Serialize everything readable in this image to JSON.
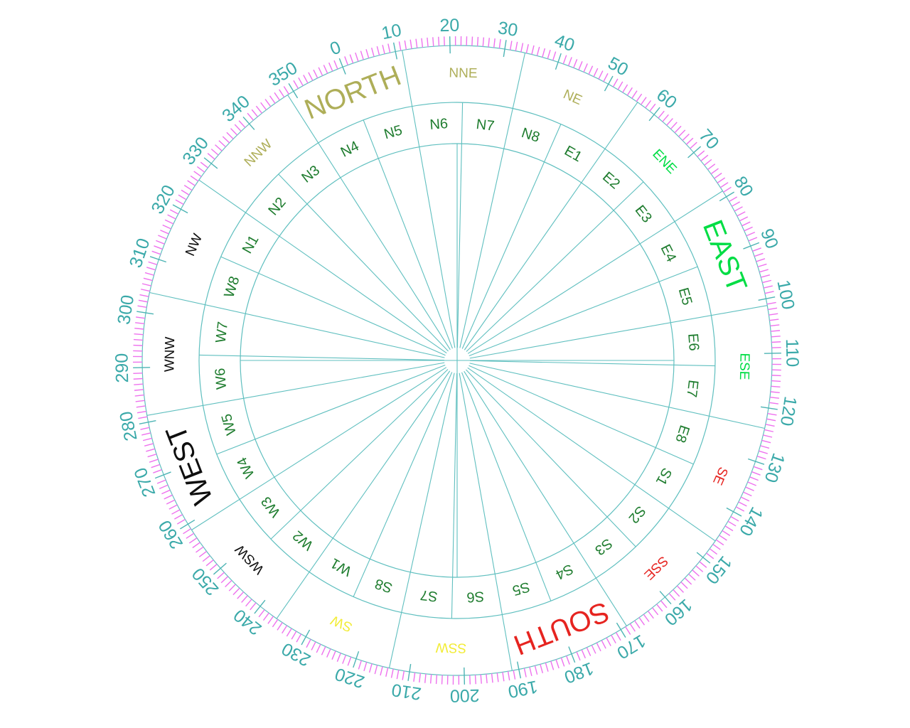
{
  "page": {
    "background": "#ffffff"
  },
  "chart_data": {
    "type": "polar-compass-dial",
    "title": "",
    "rotation_deg": -21.3,
    "tick_ring": {
      "minor_step_deg": 1,
      "major_step_deg": 10,
      "minor_tick_color": "#ee72ee",
      "major_tick_color": "#4db4b4"
    },
    "degree_labels": {
      "color": "#3aa9a9",
      "values": [
        0,
        10,
        20,
        30,
        40,
        50,
        60,
        70,
        80,
        90,
        100,
        110,
        120,
        130,
        140,
        150,
        160,
        170,
        180,
        190,
        200,
        210,
        220,
        230,
        240,
        250,
        260,
        270,
        280,
        290,
        300,
        310,
        320,
        330,
        340,
        350
      ]
    },
    "cardinal_ring": {
      "labels": [
        {
          "text": "NORTH",
          "heading": 0,
          "major": true,
          "color": "#aeae58"
        },
        {
          "text": "NNE",
          "heading": 22.5,
          "major": false,
          "color": "#aeae58"
        },
        {
          "text": "NE",
          "heading": 45,
          "major": false,
          "color": "#aeae58"
        },
        {
          "text": "ENE",
          "heading": 67.5,
          "major": false,
          "color": "#00dd44"
        },
        {
          "text": "EAST",
          "heading": 90,
          "major": true,
          "color": "#00dd44"
        },
        {
          "text": "ESE",
          "heading": 112.5,
          "major": false,
          "color": "#00dd44"
        },
        {
          "text": "SE",
          "heading": 135,
          "major": false,
          "color": "#e62420"
        },
        {
          "text": "SSE",
          "heading": 157.5,
          "major": false,
          "color": "#e62420"
        },
        {
          "text": "SOUTH",
          "heading": 180,
          "major": true,
          "color": "#e62420"
        },
        {
          "text": "SSW",
          "heading": 202.5,
          "major": false,
          "color": "#f2ec35"
        },
        {
          "text": "SW",
          "heading": 225,
          "major": false,
          "color": "#f2ec35"
        },
        {
          "text": "WSW",
          "heading": 247.5,
          "major": false,
          "color": "#0f0f0f"
        },
        {
          "text": "WEST",
          "heading": 270,
          "major": true,
          "color": "#0f0f0f"
        },
        {
          "text": "WNW",
          "heading": 292.5,
          "major": false,
          "color": "#0f0f0f"
        },
        {
          "text": "NW",
          "heading": 315,
          "major": false,
          "color": "#0f0f0f"
        },
        {
          "text": "NNW",
          "heading": 337.5,
          "major": false,
          "color": "#aeae58"
        }
      ]
    },
    "sector_ring": {
      "start_heading_deg": 315,
      "step_deg": 11.25,
      "color": "#1e7c2e",
      "labels": [
        "N1",
        "N2",
        "N3",
        "N4",
        "N5",
        "N6",
        "N7",
        "N8",
        "E1",
        "E2",
        "E3",
        "E4",
        "E5",
        "E6",
        "E7",
        "E8",
        "S1",
        "S2",
        "S3",
        "S4",
        "S5",
        "S6",
        "S7",
        "S8",
        "W1",
        "W2",
        "W3",
        "W4",
        "W5",
        "W6",
        "W7",
        "W8"
      ]
    },
    "grid": {
      "spoke_step_deg": 11.25,
      "line_color": "#5fbfbf",
      "crosshair_screen_aligned": true
    }
  }
}
